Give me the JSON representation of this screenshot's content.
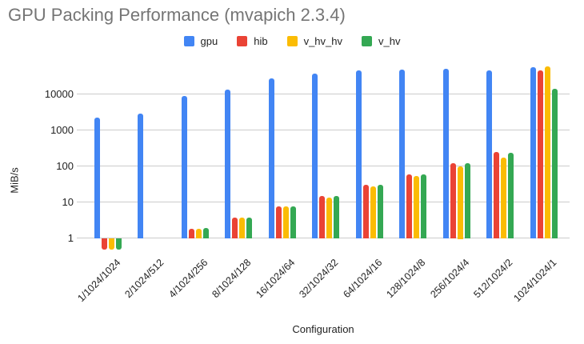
{
  "title": "GPU Packing Performance (mvapich 2.3.4)",
  "chart_data": {
    "type": "bar",
    "title": "GPU Packing Performance (mvapich 2.3.4)",
    "xlabel": "Configuration",
    "ylabel": "MiB/s",
    "y_scale": "log10",
    "y_ticks": [
      1,
      10,
      100,
      1000,
      10000
    ],
    "ylim": [
      0.4,
      70000
    ],
    "grid": true,
    "legend_position": "top",
    "categories": [
      "1/1024/1024",
      "2/1024/512",
      "4/1024/256",
      "8/1024/128",
      "16/1024/64",
      "32/1024/32",
      "64/1024/16",
      "128/1024/8",
      "256/1024/4",
      "512/1024/2",
      "1024/1024/1"
    ],
    "series": [
      {
        "name": "gpu",
        "color": "#4285F4",
        "values": [
          2200,
          2800,
          8800,
          13000,
          27000,
          37000,
          45000,
          47000,
          50000,
          46000,
          55000
        ]
      },
      {
        "name": "hib",
        "color": "#EA4335",
        "values": [
          0.5,
          null,
          1.8,
          3.7,
          7.5,
          15,
          30,
          57,
          120,
          250,
          45000
        ]
      },
      {
        "name": "v_hv_hv",
        "color": "#FBBC04",
        "values": [
          0.5,
          null,
          1.8,
          3.6,
          7.4,
          13,
          27,
          52,
          100,
          175,
          57000
        ]
      },
      {
        "name": "v_hv",
        "color": "#34A853",
        "values": [
          0.5,
          null,
          1.9,
          3.7,
          7.5,
          15,
          30,
          57,
          120,
          230,
          14000
        ]
      }
    ]
  }
}
